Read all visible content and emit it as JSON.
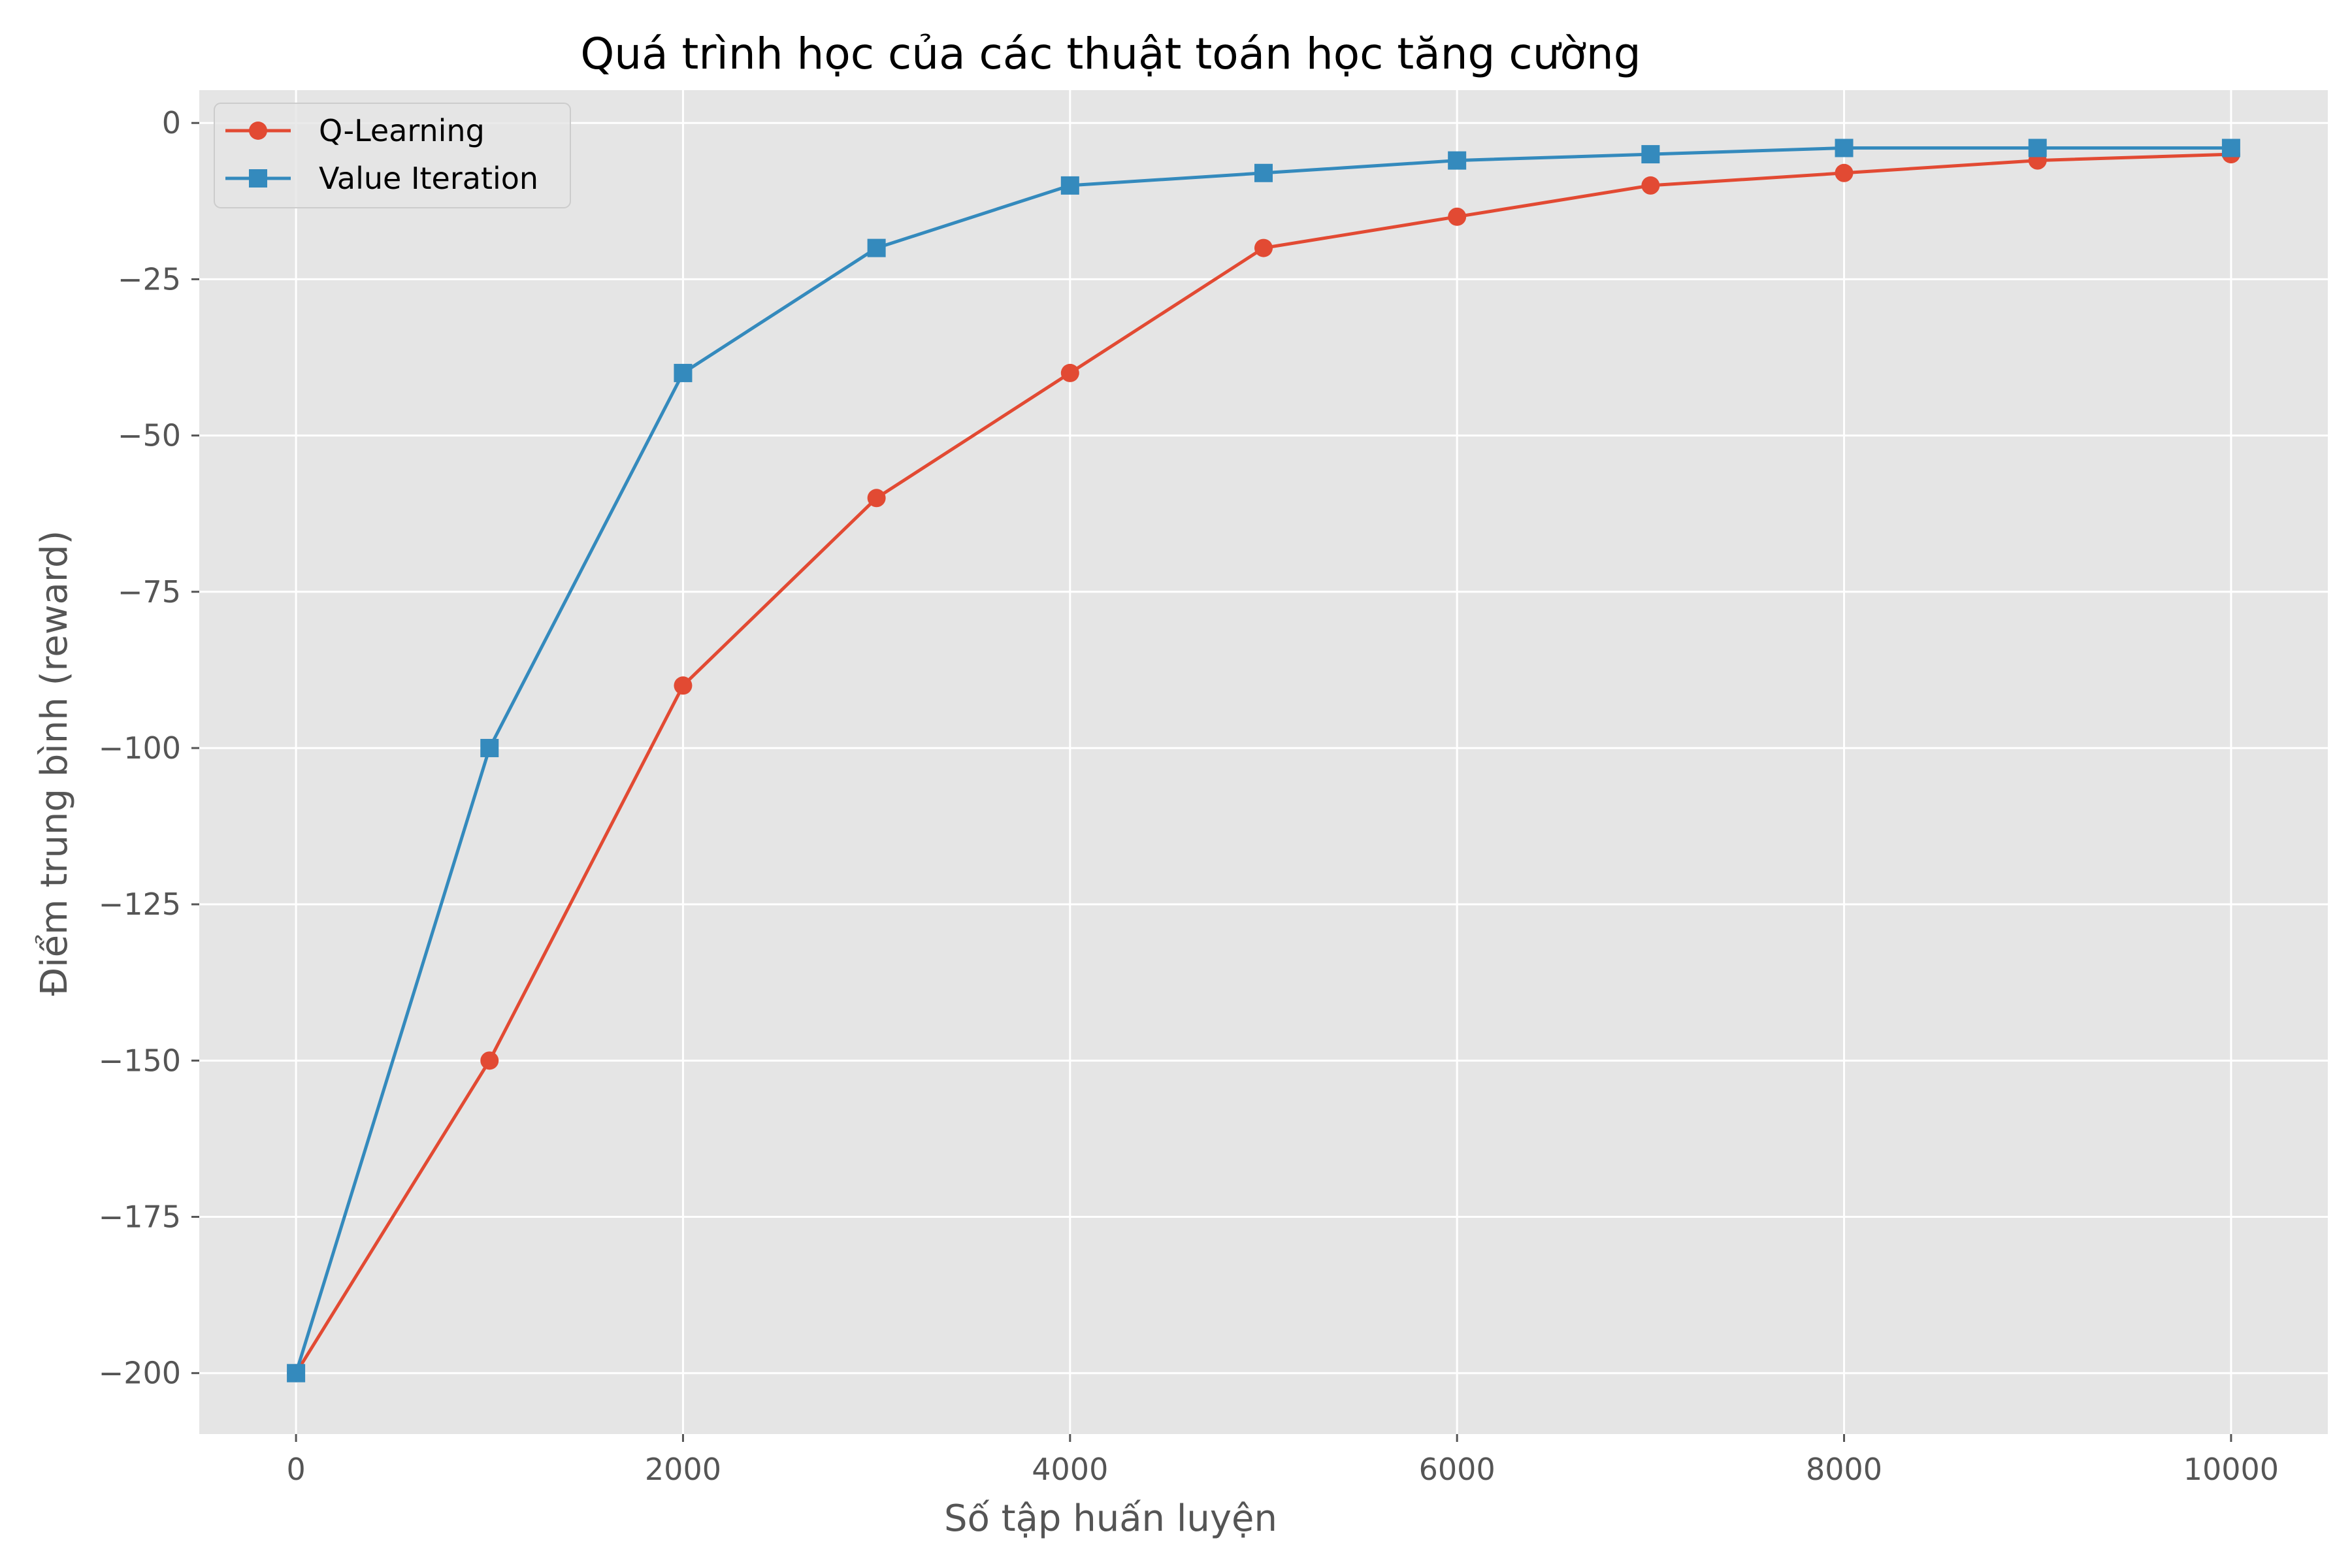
{
  "chart_data": {
    "type": "line",
    "title": "Quá trình học của các thuật toán học tăng cường",
    "xlabel": "Số tập huấn luyện",
    "ylabel": "Điểm trung bình (reward)",
    "x": [
      0,
      1000,
      2000,
      3000,
      4000,
      5000,
      6000,
      7000,
      8000,
      9000,
      10000
    ],
    "xlim": [
      -500,
      10500
    ],
    "ylim": [
      -209.75,
      5.25
    ],
    "xticks": [
      0,
      2000,
      4000,
      6000,
      8000,
      10000
    ],
    "xtick_labels": [
      "0",
      "2000",
      "4000",
      "6000",
      "8000",
      "10000"
    ],
    "yticks": [
      0,
      -25,
      -50,
      -75,
      -100,
      -125,
      -150,
      -175,
      -200
    ],
    "ytick_labels": [
      "0",
      "−25",
      "−50",
      "−75",
      "−100",
      "−125",
      "−150",
      "−175",
      "−200"
    ],
    "grid": true,
    "legend_position": "upper-left",
    "background": "#e5e5e5",
    "series": [
      {
        "name": "Q-Learning",
        "color": "#e24a33",
        "marker": "circle",
        "values": [
          -200,
          -150,
          -90,
          -60,
          -40,
          -20,
          -15,
          -10,
          -8,
          -6,
          -5
        ]
      },
      {
        "name": "Value Iteration",
        "color": "#348abd",
        "marker": "square",
        "values": [
          -200,
          -100,
          -40,
          -20,
          -10,
          -8,
          -6,
          -5,
          -4,
          -4,
          -4
        ]
      }
    ]
  }
}
